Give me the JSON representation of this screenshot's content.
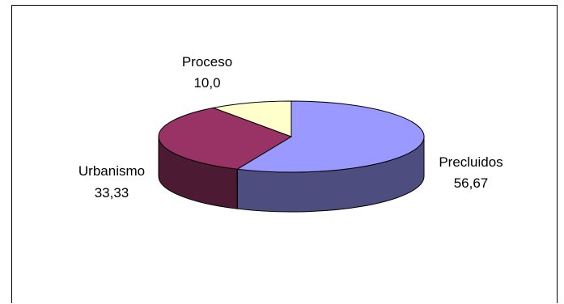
{
  "chart_data": {
    "type": "pie",
    "style": "3d-tilted",
    "legend": "none",
    "slices": [
      {
        "label": "Precluidos",
        "value_label": "56,67",
        "value": 56.67,
        "color": "#9999ff",
        "side_color": "#4d4d80"
      },
      {
        "label": "Urbanismo",
        "value_label": "33,33",
        "value": 33.33,
        "color": "#993366",
        "side_color": "#4d1a33"
      },
      {
        "label": "Proceso",
        "value_label": "10,0",
        "value": 10.0,
        "color": "#ffffcc",
        "side_color": "#808066"
      }
    ]
  }
}
